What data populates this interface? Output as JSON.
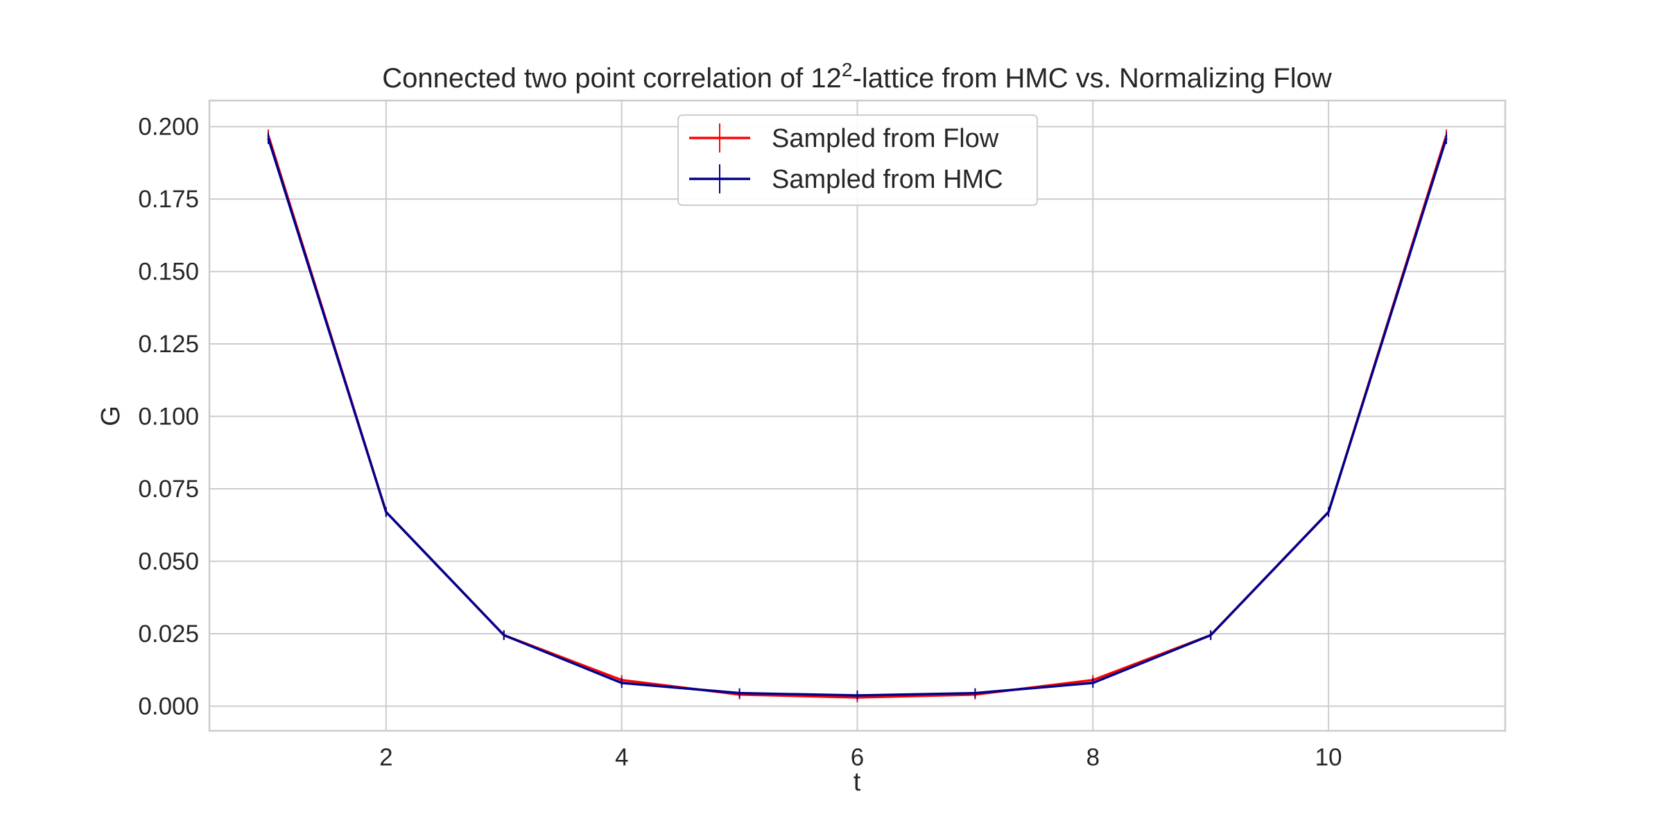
{
  "chart_data": {
    "type": "line",
    "title_prefix": "Connected two point correlation of ",
    "title_base": "12",
    "title_superscript": "2",
    "title_suffix": "-lattice from HMC vs. Normalizing Flow",
    "xlabel": "t",
    "ylabel": "G",
    "xlim": [
      0.5,
      11.5
    ],
    "ylim": [
      -0.0085,
      0.209
    ],
    "xticks": [
      2,
      4,
      6,
      8,
      10
    ],
    "yticks": [
      0.0,
      0.025,
      0.05,
      0.075,
      0.1,
      0.125,
      0.15,
      0.175,
      0.2
    ],
    "ytick_labels": [
      "0.000",
      "0.025",
      "0.050",
      "0.075",
      "0.100",
      "0.125",
      "0.150",
      "0.175",
      "0.200"
    ],
    "grid": true,
    "legend_position": "upper center",
    "x": [
      1,
      2,
      3,
      4,
      5,
      6,
      7,
      8,
      9,
      10,
      11
    ],
    "series": [
      {
        "name": "Sampled from Flow",
        "color": "#ff0000",
        "values": [
          0.197,
          0.067,
          0.0245,
          0.009,
          0.004,
          0.003,
          0.004,
          0.009,
          0.0245,
          0.067,
          0.197
        ],
        "errors": [
          0.002,
          0.001,
          0.001,
          0.0008,
          0.0007,
          0.0007,
          0.0007,
          0.0008,
          0.001,
          0.001,
          0.002
        ]
      },
      {
        "name": "Sampled from HMC",
        "color": "#00008b",
        "values": [
          0.196,
          0.067,
          0.0245,
          0.008,
          0.0045,
          0.0037,
          0.0045,
          0.008,
          0.0245,
          0.067,
          0.196
        ],
        "errors": [
          0.002,
          0.001,
          0.001,
          0.0008,
          0.0007,
          0.0007,
          0.0007,
          0.0008,
          0.001,
          0.001,
          0.002
        ]
      }
    ]
  }
}
